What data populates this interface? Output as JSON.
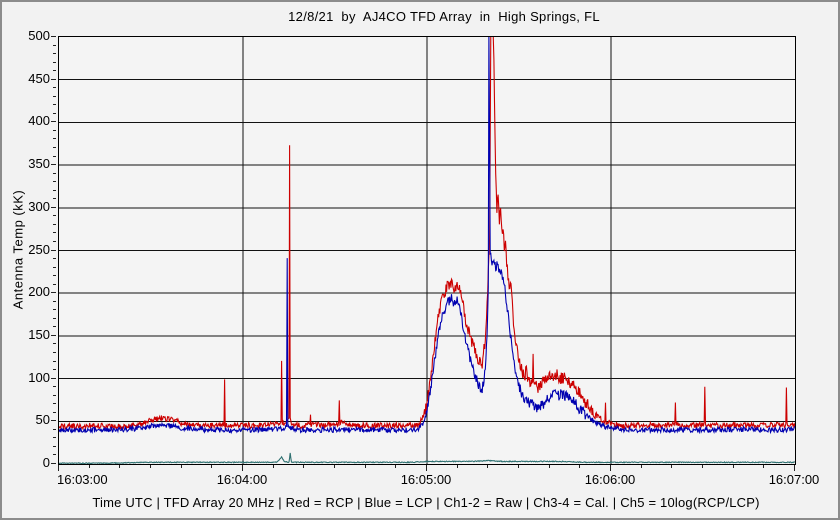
{
  "window": {
    "background": "#f2f2f2",
    "frame_color": "#8c8c8c"
  },
  "footer": "Time UTC | TFD Array 20 MHz | Red = RCP | Blue = LCP | Ch1-2 = Raw | Ch3-4 = Cal. | Ch5 = 10log(RCP/LCP)",
  "chart_data": {
    "type": "line",
    "title": "12/8/21  by  AJ4CO TFD Array  in  High Springs, FL",
    "xlabel": "Time UTC",
    "ylabel": "Antenna Temp (kK)",
    "ylim": [
      0,
      500
    ],
    "y_major_step": 50,
    "y_minor_step": 10,
    "x_span_seconds": 240,
    "x_major_step_s": 60,
    "x_minor_step_s": 10,
    "xticks": [
      "16:03:00",
      "16:04:00",
      "16:05:00",
      "16:06:00",
      "16:07:00"
    ],
    "yticks": [
      0,
      50,
      100,
      150,
      200,
      250,
      300,
      350,
      400,
      450,
      500
    ],
    "grid": true,
    "legend_position": "none",
    "grid_color": "#111111",
    "series": [
      {
        "name": "RCP (Ch1-2 Raw, Red)",
        "color": "#cc0000",
        "noise": 3.4,
        "points": [
          [
            0,
            44
          ],
          [
            6,
            44
          ],
          [
            12,
            45
          ],
          [
            18,
            44
          ],
          [
            24,
            45
          ],
          [
            27,
            47
          ],
          [
            30,
            51
          ],
          [
            33,
            54
          ],
          [
            35,
            53
          ],
          [
            38,
            50
          ],
          [
            41,
            47
          ],
          [
            44,
            45
          ],
          [
            48,
            45
          ],
          [
            52,
            45
          ],
          [
            53.8,
            46
          ],
          [
            54,
            93
          ],
          [
            54.2,
            46
          ],
          [
            58,
            45
          ],
          [
            62,
            45
          ],
          [
            66,
            45
          ],
          [
            70,
            46
          ],
          [
            72,
            47
          ],
          [
            72.4,
            48
          ],
          [
            72.6,
            118
          ],
          [
            72.8,
            49
          ],
          [
            73.6,
            48
          ],
          [
            75,
            52
          ],
          [
            75.2,
            368
          ],
          [
            75.4,
            54
          ],
          [
            76,
            47
          ],
          [
            79,
            45
          ],
          [
            81.8,
            46
          ],
          [
            82,
            62
          ],
          [
            82.2,
            46
          ],
          [
            85,
            46
          ],
          [
            88,
            46
          ],
          [
            91.2,
            47
          ],
          [
            91.4,
            80
          ],
          [
            91.6,
            49
          ],
          [
            94,
            46
          ],
          [
            98,
            45
          ],
          [
            103,
            45
          ],
          [
            108,
            45
          ],
          [
            113,
            45
          ],
          [
            117,
            46
          ],
          [
            118,
            50
          ],
          [
            119,
            58
          ],
          [
            120,
            70
          ],
          [
            121,
            95
          ],
          [
            122,
            125
          ],
          [
            123,
            155
          ],
          [
            124,
            178
          ],
          [
            125,
            193
          ],
          [
            126,
            203
          ],
          [
            127,
            210
          ],
          [
            128,
            214
          ],
          [
            129,
            204
          ],
          [
            130,
            212
          ],
          [
            131,
            198
          ],
          [
            132,
            182
          ],
          [
            133,
            163
          ],
          [
            134,
            148
          ],
          [
            135,
            139
          ],
          [
            136,
            129
          ],
          [
            137,
            121
          ],
          [
            138,
            116
          ],
          [
            139,
            145
          ],
          [
            139.6,
            185
          ],
          [
            140,
            225
          ],
          [
            140.4,
            270
          ],
          [
            140.8,
            505
          ],
          [
            141.6,
            505
          ],
          [
            142,
            430
          ],
          [
            142.4,
            340
          ],
          [
            142.8,
            300
          ],
          [
            143.2,
            312
          ],
          [
            143.6,
            285
          ],
          [
            144,
            295
          ],
          [
            144.4,
            270
          ],
          [
            144.8,
            278
          ],
          [
            145.2,
            255
          ],
          [
            145.6,
            262
          ],
          [
            146,
            235
          ],
          [
            146.6,
            215
          ],
          [
            147,
            202
          ],
          [
            147.4,
            212
          ],
          [
            148,
            172
          ],
          [
            148.6,
            152
          ],
          [
            149,
            142
          ],
          [
            150,
            122
          ],
          [
            151,
            107
          ],
          [
            152,
            100
          ],
          [
            152.4,
            114
          ],
          [
            152.8,
            99
          ],
          [
            153.6,
            96
          ],
          [
            154.4,
            94
          ],
          [
            154.6,
            124
          ],
          [
            154.8,
            96
          ],
          [
            155.6,
            91
          ],
          [
            156.4,
            90
          ],
          [
            157.2,
            93
          ],
          [
            158,
            96
          ],
          [
            159,
            100
          ],
          [
            160,
            104
          ],
          [
            161,
            100
          ],
          [
            162,
            105
          ],
          [
            163,
            102
          ],
          [
            164,
            100
          ],
          [
            165,
            103
          ],
          [
            166,
            98
          ],
          [
            167,
            95
          ],
          [
            168,
            91
          ],
          [
            169,
            86
          ],
          [
            170,
            81
          ],
          [
            171,
            76
          ],
          [
            172,
            71
          ],
          [
            173,
            66
          ],
          [
            174,
            62
          ],
          [
            175,
            58
          ],
          [
            176,
            55
          ],
          [
            177,
            52
          ],
          [
            178,
            50
          ],
          [
            178.2,
            74
          ],
          [
            178.4,
            49
          ],
          [
            179,
            48
          ],
          [
            180,
            47
          ],
          [
            182,
            46
          ],
          [
            184,
            45
          ],
          [
            187,
            45
          ],
          [
            190,
            45
          ],
          [
            193,
            46
          ],
          [
            196,
            45
          ],
          [
            199,
            45
          ],
          [
            200.8,
            46
          ],
          [
            201,
            70
          ],
          [
            201.2,
            46
          ],
          [
            204,
            45
          ],
          [
            207,
            45
          ],
          [
            210.4,
            46
          ],
          [
            210.6,
            84
          ],
          [
            210.8,
            46
          ],
          [
            214,
            45
          ],
          [
            218,
            45
          ],
          [
            222,
            46
          ],
          [
            226,
            45
          ],
          [
            230,
            45
          ],
          [
            234,
            46
          ],
          [
            237,
            46
          ],
          [
            237.2,
            90
          ],
          [
            237.4,
            47
          ],
          [
            239,
            46
          ],
          [
            240,
            46
          ]
        ]
      },
      {
        "name": "LCP (Ch1-2 Raw, Blue)",
        "color": "#0000b0",
        "noise": 3.0,
        "points": [
          [
            0,
            40
          ],
          [
            8,
            40
          ],
          [
            16,
            40
          ],
          [
            24,
            41
          ],
          [
            28,
            43
          ],
          [
            31,
            45
          ],
          [
            34,
            46
          ],
          [
            37,
            44
          ],
          [
            40,
            42
          ],
          [
            44,
            41
          ],
          [
            48,
            40
          ],
          [
            54,
            40
          ],
          [
            60,
            40
          ],
          [
            66,
            40
          ],
          [
            71,
            41
          ],
          [
            73,
            42
          ],
          [
            74.2,
            44
          ],
          [
            74.4,
            238
          ],
          [
            74.6,
            45
          ],
          [
            75.6,
            42
          ],
          [
            78,
            40
          ],
          [
            83,
            40
          ],
          [
            88,
            40
          ],
          [
            93,
            40
          ],
          [
            98,
            40
          ],
          [
            104,
            40
          ],
          [
            110,
            40
          ],
          [
            115,
            40
          ],
          [
            117,
            41
          ],
          [
            118,
            44
          ],
          [
            119,
            50
          ],
          [
            120,
            62
          ],
          [
            121,
            84
          ],
          [
            122,
            110
          ],
          [
            123,
            136
          ],
          [
            124,
            158
          ],
          [
            125,
            172
          ],
          [
            126,
            182
          ],
          [
            127,
            190
          ],
          [
            128,
            194
          ],
          [
            129,
            187
          ],
          [
            130,
            191
          ],
          [
            131,
            178
          ],
          [
            132,
            158
          ],
          [
            133,
            138
          ],
          [
            134,
            123
          ],
          [
            135,
            110
          ],
          [
            136,
            99
          ],
          [
            137,
            91
          ],
          [
            138,
            85
          ],
          [
            139,
            112
          ],
          [
            139.6,
            155
          ],
          [
            140,
            210
          ],
          [
            140.2,
            505
          ],
          [
            140.6,
            245
          ],
          [
            141.2,
            232
          ],
          [
            141.8,
            240
          ],
          [
            142.4,
            228
          ],
          [
            143,
            238
          ],
          [
            143.6,
            224
          ],
          [
            144.2,
            232
          ],
          [
            144.8,
            214
          ],
          [
            145.4,
            203
          ],
          [
            146,
            186
          ],
          [
            146.8,
            162
          ],
          [
            147.6,
            140
          ],
          [
            148.4,
            120
          ],
          [
            149.2,
            105
          ],
          [
            150,
            92
          ],
          [
            151,
            82
          ],
          [
            152,
            76
          ],
          [
            153,
            72
          ],
          [
            154,
            70
          ],
          [
            155,
            68
          ],
          [
            156,
            66
          ],
          [
            157,
            68
          ],
          [
            158,
            71
          ],
          [
            159,
            74
          ],
          [
            160,
            78
          ],
          [
            161,
            80
          ],
          [
            162,
            82
          ],
          [
            163,
            80
          ],
          [
            164,
            82
          ],
          [
            165,
            80
          ],
          [
            166,
            78
          ],
          [
            167,
            75
          ],
          [
            168,
            72
          ],
          [
            169,
            68
          ],
          [
            170,
            64
          ],
          [
            171,
            60
          ],
          [
            172,
            57
          ],
          [
            173,
            54
          ],
          [
            174,
            51
          ],
          [
            175,
            49
          ],
          [
            176,
            47
          ],
          [
            177,
            45
          ],
          [
            178,
            44
          ],
          [
            180,
            42
          ],
          [
            183,
            41
          ],
          [
            186,
            40
          ],
          [
            190,
            40
          ],
          [
            195,
            40
          ],
          [
            200,
            40
          ],
          [
            205,
            40
          ],
          [
            210,
            40
          ],
          [
            215,
            40
          ],
          [
            220,
            40
          ],
          [
            225,
            41
          ],
          [
            230,
            40
          ],
          [
            235,
            40
          ],
          [
            240,
            41
          ]
        ]
      },
      {
        "name": "Ch5 = 10log(RCP/LCP)",
        "color": "#2e7070",
        "noise": 0.5,
        "points": [
          [
            0,
            1
          ],
          [
            15,
            1
          ],
          [
            30,
            2
          ],
          [
            45,
            2
          ],
          [
            55,
            2
          ],
          [
            65,
            2
          ],
          [
            71,
            2
          ],
          [
            72.6,
            8
          ],
          [
            73.4,
            3
          ],
          [
            75,
            2
          ],
          [
            75.4,
            13
          ],
          [
            75.8,
            2
          ],
          [
            85,
            2
          ],
          [
            95,
            2
          ],
          [
            105,
            2
          ],
          [
            115,
            2
          ],
          [
            120,
            3
          ],
          [
            123,
            3
          ],
          [
            126,
            3
          ],
          [
            130,
            3
          ],
          [
            135,
            3
          ],
          [
            140,
            4
          ],
          [
            145,
            3
          ],
          [
            150,
            3
          ],
          [
            155,
            3
          ],
          [
            160,
            3
          ],
          [
            165,
            3
          ],
          [
            170,
            2
          ],
          [
            175,
            2
          ],
          [
            180,
            2
          ],
          [
            185,
            2
          ],
          [
            190,
            2
          ],
          [
            195,
            2
          ],
          [
            200,
            2
          ],
          [
            205,
            2
          ],
          [
            210,
            2
          ],
          [
            215,
            2
          ],
          [
            220,
            2
          ],
          [
            225,
            2
          ],
          [
            230,
            2
          ],
          [
            235,
            2
          ],
          [
            240,
            2
          ]
        ]
      }
    ]
  }
}
